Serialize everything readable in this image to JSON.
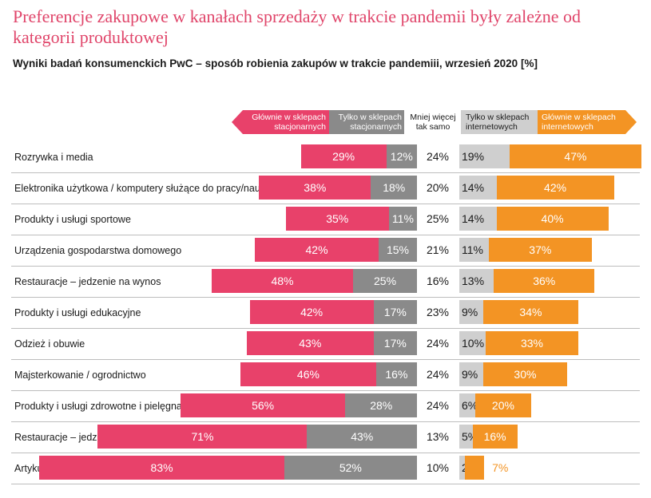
{
  "title": "Preferencje zakupowe w kanałach sprzedaży w trakcie pandemii były zależne od kategorii produktowej",
  "subtitle": "Wyniki badań konsumenckich PwC – sposób robienia zakupów w trakcie pandemiii, wrzesień 2020 [%]",
  "colors": {
    "mainly_stationary": "#e8416a",
    "only_stationary": "#8a8a8a",
    "only_online": "#cfcfcf",
    "mainly_online": "#f39424",
    "title": "#e0456a"
  },
  "chart_data": {
    "type": "bar",
    "orientation": "horizontal diverging",
    "unit": "%",
    "legend": [
      "Głównie w sklepach stacjonarnych",
      "Tylko w sklepach stacjonarnych",
      "Mniej więcej tak samo",
      "Tylko w sklepach internetowych",
      "Głównie w sklepach internetowych"
    ],
    "categories": [
      "Rozrywka i media",
      "Elektronika użytkowa / komputery służące do pracy/nauki",
      "Produkty i usługi sportowe",
      "Urządzenia gospodarstwa domowego",
      "Restauracje – jedzenie na wynos",
      "Produkty i usługi edukacyjne",
      "Odzież i obuwie",
      "Majsterkowanie / ogrodnictwo",
      "Produkty i usługi zdrowotne i pielęgnacyjne",
      "Restauracje – jedzenie na miejscu",
      "Artykuły spożywcze"
    ],
    "series": [
      {
        "name": "Głównie w sklepach stacjonarnych",
        "values": [
          29,
          38,
          35,
          42,
          48,
          42,
          43,
          46,
          56,
          71,
          83
        ],
        "labels": [
          "29%",
          "38%",
          "35%",
          "42%",
          "48%",
          "42%",
          "43%",
          "46%",
          "56%",
          "71%",
          "83%"
        ]
      },
      {
        "name": "Tylko w sklepach stacjonarnych",
        "values": [
          12,
          18,
          11,
          15,
          25,
          17,
          17,
          16,
          28,
          43,
          52
        ],
        "labels": [
          "12%",
          "18%",
          "11%",
          "15%",
          "25%",
          "17%",
          "17%",
          "16%",
          "28%",
          "43%",
          "52%"
        ]
      },
      {
        "name": "Mniej więcej tak samo",
        "values": [
          24,
          20,
          25,
          21,
          16,
          23,
          24,
          24,
          24,
          13,
          10
        ],
        "labels": [
          "24%",
          "20%",
          "25%",
          "21%",
          "16%",
          "23%",
          "24%",
          "24%",
          "24%",
          "13%",
          "10%"
        ]
      },
      {
        "name": "Tylko w sklepach internetowych",
        "values": [
          19,
          14,
          14,
          11,
          13,
          9,
          10,
          9,
          6,
          5,
          2
        ],
        "labels": [
          "19%",
          "14%",
          "14%",
          "11%",
          "13%",
          "9%",
          "10%",
          "9%",
          "6%",
          "5%",
          "2%"
        ]
      },
      {
        "name": "Głównie w sklepach internetowych",
        "values": [
          47,
          42,
          40,
          37,
          36,
          34,
          33,
          30,
          20,
          16,
          7
        ],
        "labels": [
          "47%",
          "42%",
          "40%",
          "37%",
          "36%",
          "34%",
          "33%",
          "30%",
          "20%",
          "16%",
          "7%"
        ]
      }
    ]
  }
}
